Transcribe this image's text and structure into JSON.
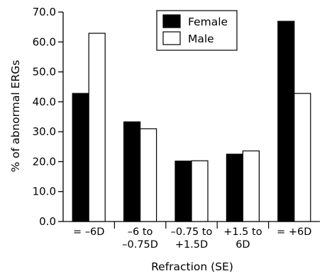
{
  "chart_data": {
    "type": "bar",
    "xlabel": "Refraction (SE)",
    "ylabel": "% of abnormal ERGs",
    "ylim": [
      0,
      70
    ],
    "yticks": [
      "0.0",
      "10.0",
      "20.0",
      "30.0",
      "40.0",
      "50.0",
      "60.0",
      "70.0"
    ],
    "grid": false,
    "legend_position": "top-right",
    "categories": [
      [
        "= –6D"
      ],
      [
        "–6 to",
        "–0.75D"
      ],
      [
        "–0.75 to",
        "+1.5D"
      ],
      [
        "+1.5 to",
        "6D"
      ],
      [
        "= +6D"
      ]
    ],
    "series": [
      {
        "name": "Female",
        "color": "#000000",
        "values": [
          42.8,
          33.3,
          20.2,
          22.5,
          66.9
        ]
      },
      {
        "name": "Male",
        "color": "#ffffff",
        "values": [
          62.9,
          31.0,
          20.3,
          23.6,
          42.8
        ]
      }
    ]
  }
}
